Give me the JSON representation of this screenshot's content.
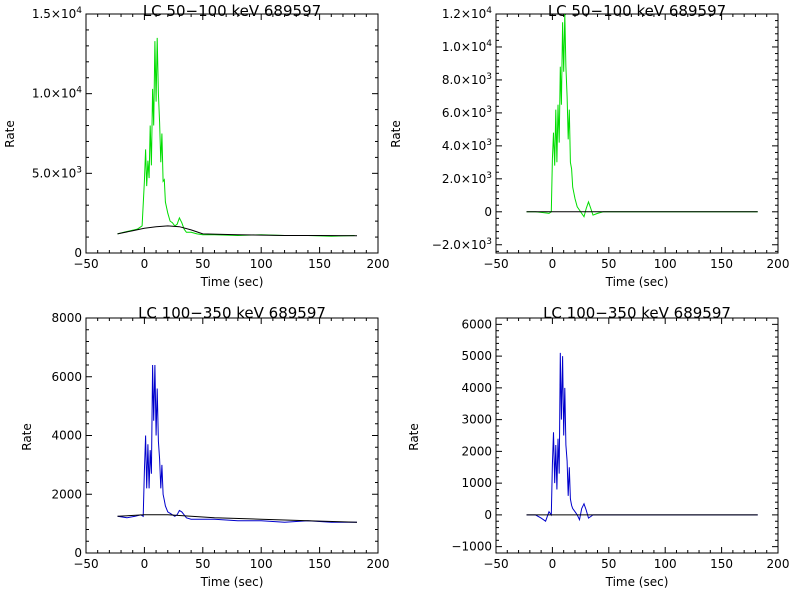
{
  "chart_data": [
    {
      "type": "line",
      "title": "LC 50−100 keV  689597",
      "xlabel": "Time (sec)",
      "ylabel": "Rate",
      "xlim": [
        -50,
        200
      ],
      "ylim": [
        0,
        15000
      ],
      "xticks": [
        {
          "v": -50,
          "label": "−50"
        },
        {
          "v": 0,
          "label": "0"
        },
        {
          "v": 50,
          "label": "50"
        },
        {
          "v": 100,
          "label": "100"
        },
        {
          "v": 150,
          "label": "150"
        },
        {
          "v": 200,
          "label": "200"
        }
      ],
      "yticks": [
        {
          "v": 0,
          "label": "0"
        },
        {
          "v": 5000,
          "label": "5.0×10",
          "sup": "3"
        },
        {
          "v": 10000,
          "label": "1.0×10",
          "sup": "4"
        },
        {
          "v": 15000,
          "label": "1.5×10",
          "sup": "4"
        }
      ],
      "grid": false,
      "series": [
        {
          "color": "#00dd00",
          "x": [
            -23,
            -18,
            -12,
            -6,
            -2,
            0,
            1,
            2,
            3,
            4,
            5,
            6,
            7,
            8,
            9,
            10,
            11,
            12,
            13,
            14,
            15,
            16,
            17,
            18,
            20,
            22,
            24,
            26,
            28,
            30,
            32,
            34,
            36,
            40,
            45,
            50,
            60,
            80,
            100,
            120,
            140,
            160,
            180
          ],
          "y": [
            1200,
            1300,
            1400,
            1500,
            1700,
            4500,
            6500,
            4200,
            5800,
            4700,
            8000,
            5500,
            10300,
            8000,
            13300,
            9500,
            13500,
            10000,
            8200,
            5700,
            7500,
            4500,
            4600,
            3200,
            2500,
            2000,
            1900,
            1700,
            1800,
            2200,
            1900,
            1500,
            1300,
            1300,
            1200,
            1150,
            1150,
            1100,
            1150,
            1100,
            1100,
            1050,
            1100
          ]
        },
        {
          "color": "#000000",
          "x": [
            -23,
            -10,
            0,
            10,
            20,
            30,
            40,
            50,
            80,
            120,
            150,
            182
          ],
          "y": [
            1200,
            1400,
            1550,
            1650,
            1700,
            1650,
            1450,
            1200,
            1150,
            1100,
            1100,
            1080
          ]
        }
      ]
    },
    {
      "type": "line",
      "title": "LC 50−100 keV  689597",
      "xlabel": "Time (sec)",
      "ylabel": "Rate",
      "xlim": [
        -50,
        200
      ],
      "ylim": [
        -2500,
        12000
      ],
      "xticks": [
        {
          "v": -50,
          "label": "−50"
        },
        {
          "v": 0,
          "label": "0"
        },
        {
          "v": 50,
          "label": "50"
        },
        {
          "v": 100,
          "label": "100"
        },
        {
          "v": 150,
          "label": "150"
        },
        {
          "v": 200,
          "label": "200"
        }
      ],
      "yticks": [
        {
          "v": -2000,
          "label": "−2.0×10",
          "sup": "3"
        },
        {
          "v": 0,
          "label": "0"
        },
        {
          "v": 2000,
          "label": "2.0×10",
          "sup": "3"
        },
        {
          "v": 4000,
          "label": "4.0×10",
          "sup": "3"
        },
        {
          "v": 6000,
          "label": "6.0×10",
          "sup": "3"
        },
        {
          "v": 8000,
          "label": "8.0×10",
          "sup": "3"
        },
        {
          "v": 10000,
          "label": "1.0×10",
          "sup": "4"
        },
        {
          "v": 12000,
          "label": "1.2×10",
          "sup": "4"
        }
      ],
      "grid": false,
      "series": [
        {
          "color": "#00dd00",
          "x": [
            -23,
            -15,
            -8,
            -3,
            -1,
            0,
            1,
            2,
            3,
            4,
            5,
            6,
            7,
            8,
            9,
            10,
            11,
            12,
            13,
            14,
            15,
            16,
            17,
            18,
            20,
            22,
            24,
            26,
            28,
            30,
            32,
            34,
            36,
            40,
            45,
            50,
            60,
            80,
            100,
            120,
            140,
            160,
            182
          ],
          "y": [
            0,
            0,
            -50,
            -100,
            0,
            3200,
            4800,
            2800,
            6200,
            3000,
            6500,
            4200,
            8800,
            6500,
            11500,
            8500,
            12000,
            8800,
            7000,
            4400,
            6200,
            3000,
            2600,
            1500,
            800,
            300,
            100,
            -100,
            -300,
            200,
            600,
            200,
            -200,
            -100,
            0,
            0,
            0,
            0,
            0,
            0,
            0,
            0,
            0
          ]
        },
        {
          "color": "#000000",
          "x": [
            -23,
            182
          ],
          "y": [
            0,
            0
          ]
        }
      ]
    },
    {
      "type": "line",
      "title": "LC 100−350 keV  689597",
      "xlabel": "Time (sec)",
      "ylabel": "Rate",
      "xlim": [
        -50,
        200
      ],
      "ylim": [
        0,
        8000
      ],
      "xticks": [
        {
          "v": -50,
          "label": "−50"
        },
        {
          "v": 0,
          "label": "0"
        },
        {
          "v": 50,
          "label": "50"
        },
        {
          "v": 100,
          "label": "100"
        },
        {
          "v": 150,
          "label": "150"
        },
        {
          "v": 200,
          "label": "200"
        }
      ],
      "yticks": [
        {
          "v": 0,
          "label": "0"
        },
        {
          "v": 2000,
          "label": "2000"
        },
        {
          "v": 4000,
          "label": "4000"
        },
        {
          "v": 6000,
          "label": "6000"
        },
        {
          "v": 8000,
          "label": "8000"
        }
      ],
      "grid": false,
      "series": [
        {
          "color": "#0000cc",
          "x": [
            -23,
            -15,
            -8,
            -3,
            -1,
            0,
            1,
            2,
            3,
            4,
            5,
            6,
            7,
            8,
            9,
            10,
            11,
            12,
            13,
            14,
            15,
            16,
            17,
            18,
            20,
            22,
            24,
            26,
            28,
            30,
            32,
            34,
            36,
            40,
            50,
            60,
            80,
            100,
            120,
            140,
            160,
            182
          ],
          "y": [
            1250,
            1200,
            1250,
            1300,
            1250,
            2800,
            4000,
            2200,
            3700,
            2200,
            3500,
            2700,
            6400,
            4500,
            6400,
            4000,
            5600,
            3800,
            3200,
            2200,
            3000,
            2000,
            1800,
            1600,
            1400,
            1350,
            1300,
            1250,
            1300,
            1450,
            1400,
            1300,
            1200,
            1150,
            1150,
            1150,
            1100,
            1100,
            1050,
            1100,
            1050,
            1050
          ]
        },
        {
          "color": "#000000",
          "x": [
            -23,
            0,
            20,
            40,
            60,
            100,
            140,
            182
          ],
          "y": [
            1250,
            1300,
            1300,
            1250,
            1200,
            1150,
            1100,
            1050
          ]
        }
      ]
    },
    {
      "type": "line",
      "title": "LC 100−350 keV  689597",
      "xlabel": "Time (sec)",
      "ylabel": "Rate",
      "xlim": [
        -50,
        200
      ],
      "ylim": [
        -1200,
        6200
      ],
      "xticks": [
        {
          "v": -50,
          "label": "−50"
        },
        {
          "v": 0,
          "label": "0"
        },
        {
          "v": 50,
          "label": "50"
        },
        {
          "v": 100,
          "label": "100"
        },
        {
          "v": 150,
          "label": "150"
        },
        {
          "v": 200,
          "label": "200"
        }
      ],
      "yticks": [
        {
          "v": -1000,
          "label": "−1000"
        },
        {
          "v": 0,
          "label": "0"
        },
        {
          "v": 1000,
          "label": "1000"
        },
        {
          "v": 2000,
          "label": "2000"
        },
        {
          "v": 3000,
          "label": "3000"
        },
        {
          "v": 4000,
          "label": "4000"
        },
        {
          "v": 5000,
          "label": "5000"
        },
        {
          "v": 6000,
          "label": "6000"
        }
      ],
      "grid": false,
      "series": [
        {
          "color": "#0000cc",
          "x": [
            -23,
            -15,
            -10,
            -6,
            -3,
            -1,
            0,
            1,
            2,
            3,
            4,
            5,
            6,
            7,
            8,
            9,
            10,
            11,
            12,
            13,
            14,
            15,
            16,
            17,
            18,
            20,
            22,
            24,
            26,
            28,
            30,
            32,
            34,
            36,
            40,
            50,
            60,
            80,
            100,
            120,
            140,
            160,
            182
          ],
          "y": [
            0,
            0,
            -100,
            -200,
            100,
            0,
            1600,
            2600,
            1000,
            2200,
            800,
            2400,
            1300,
            5100,
            3000,
            5000,
            2500,
            4000,
            2200,
            1700,
            600,
            1500,
            500,
            300,
            200,
            100,
            0,
            -150,
            200,
            350,
            150,
            -100,
            -50,
            0,
            0,
            0,
            0,
            0,
            0,
            0,
            0,
            0,
            0
          ]
        },
        {
          "color": "#000000",
          "x": [
            -23,
            182
          ],
          "y": [
            0,
            0
          ]
        }
      ]
    }
  ]
}
